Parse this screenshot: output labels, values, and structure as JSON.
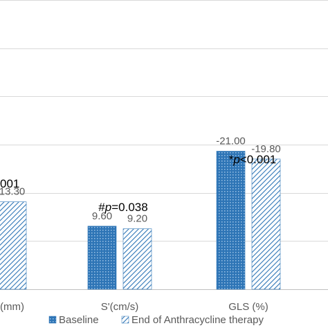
{
  "chart_data": {
    "type": "bar",
    "title": "",
    "xlabel": "",
    "ylabel": "",
    "categories": [
      "(mm)",
      "S'(cm/s)",
      "GLS (%)"
    ],
    "series": [
      {
        "name": "Baseline",
        "color": "#2e75b6",
        "pattern": "dense-dots",
        "values": [
          null,
          9.6,
          21.0
        ],
        "labels": [
          "",
          "9.60",
          "-21.00"
        ]
      },
      {
        "name": "End of Anthracycline therapy",
        "color": "#2e75b6",
        "pattern": "diagonal-hatch",
        "values": [
          13.3,
          9.2,
          19.8
        ],
        "labels": [
          "13.30",
          "9.20",
          "-19.80"
        ]
      }
    ],
    "ylim": [
      0,
      44
    ],
    "grid": true,
    "legend_position": "bottom",
    "significance": [
      {
        "category": "(mm)",
        "prefix": "",
        "p_letter": "",
        "text": "001"
      },
      {
        "category": "S'(cm/s)",
        "prefix": "#",
        "p_letter": "p",
        "text": "=0.038"
      },
      {
        "category": "GLS (%)",
        "prefix": "*",
        "p_letter": "p",
        "text": "<0.001"
      }
    ]
  }
}
